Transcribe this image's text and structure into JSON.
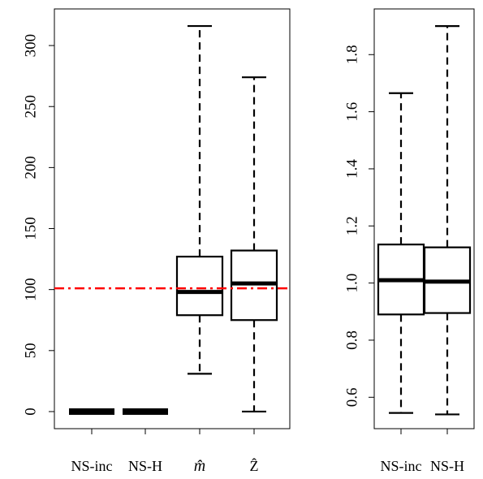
{
  "chart_data": [
    {
      "type": "box",
      "categories": [
        "NS-inc",
        "NS-H",
        "m̂",
        "Ẑ"
      ],
      "boxes": [
        {
          "name": "NS-inc",
          "min": 0,
          "q1": 0,
          "median": 0,
          "q3": 0,
          "max": 0
        },
        {
          "name": "NS-H",
          "min": 0,
          "q1": 0,
          "median": 0,
          "q3": 0,
          "max": 0
        },
        {
          "name": "m̂",
          "min": 31,
          "q1": 79,
          "median": 98,
          "q3": 127,
          "max": 316
        },
        {
          "name": "Ẑ",
          "min": 0,
          "q1": 75,
          "median": 105,
          "q3": 132,
          "max": 274
        }
      ],
      "reference_line": {
        "y": 101,
        "color": "#ff0000",
        "style": "dash-dot"
      },
      "yticks": [
        "0",
        "50",
        "100",
        "150",
        "200",
        "250",
        "300"
      ],
      "ytick_values": [
        0,
        50,
        100,
        150,
        200,
        250,
        300
      ],
      "ylim": [
        -14,
        330
      ],
      "grid": false
    },
    {
      "type": "box",
      "categories": [
        "NS-inc",
        "NS-H"
      ],
      "boxes": [
        {
          "name": "NS-inc",
          "min": 0.545,
          "q1": 0.89,
          "median": 1.01,
          "q3": 1.135,
          "max": 1.665
        },
        {
          "name": "NS-H",
          "min": 0.54,
          "q1": 0.895,
          "median": 1.005,
          "q3": 1.125,
          "max": 1.9
        }
      ],
      "yticks": [
        "0.6",
        "0.8",
        "1.0",
        "1.2",
        "1.4",
        "1.6",
        "1.8"
      ],
      "ytick_values": [
        0.6,
        0.8,
        1.0,
        1.2,
        1.4,
        1.6,
        1.8
      ],
      "ylim": [
        0.49,
        1.96
      ],
      "grid": false
    }
  ]
}
